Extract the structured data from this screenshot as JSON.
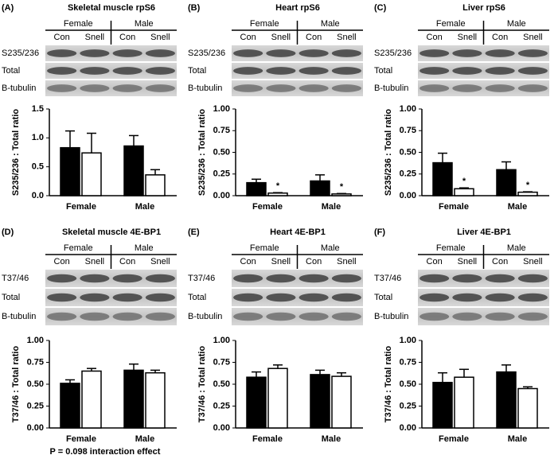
{
  "chart_data": [
    {
      "type": "bar",
      "panel": "(A)",
      "title": "Skeletal muscle rpS6",
      "blot": {
        "groups": [
          "Female",
          "Male"
        ],
        "lanes": [
          "Con",
          "Snell",
          "Con",
          "Snell"
        ],
        "rows": [
          "S235/236",
          "Total",
          "B-tubulin"
        ]
      },
      "y_label": "S235/236 : Total ratio",
      "categories": [
        "Female",
        "Male"
      ],
      "series": [
        {
          "color": "#000000",
          "values": [
            0.83,
            0.86
          ],
          "errors": [
            0.29,
            0.18
          ]
        },
        {
          "color": "#ffffff",
          "values": [
            0.74,
            0.36
          ],
          "errors": [
            0.34,
            0.09
          ]
        }
      ],
      "ylim": [
        0,
        1.5
      ],
      "yticks": [
        {
          "value": 0,
          "label": "0.0"
        },
        0.5,
        {
          "value": 1,
          "label": "1.0"
        },
        1.5
      ]
    },
    {
      "type": "bar",
      "panel": "(B)",
      "title": "Heart rpS6",
      "blot": {
        "groups": [
          "Female",
          "Male"
        ],
        "lanes": [
          "Con",
          "Snell",
          "Con",
          "Snell"
        ],
        "rows": [
          "S235/236",
          "Total",
          "B-tubulin"
        ]
      },
      "y_label": "S235/236 : Total ratio",
      "categories": [
        "Female",
        "Male"
      ],
      "series": [
        {
          "color": "#000000",
          "values": [
            0.15,
            0.17
          ],
          "errors": [
            0.04,
            0.07
          ]
        },
        {
          "color": "#ffffff",
          "values": [
            0.03,
            0.02
          ],
          "errors": [
            0.005,
            0.005
          ]
        }
      ],
      "annotations": [
        "*",
        "*"
      ],
      "ylim": [
        0,
        1
      ],
      "yticks": [
        {
          "value": 0,
          "label": "0.00"
        },
        0.25,
        {
          "value": 0.5,
          "label": "0.50"
        },
        0.75,
        {
          "value": 1,
          "label": "1.00"
        }
      ]
    },
    {
      "type": "bar",
      "panel": "(C)",
      "title": "Liver rpS6",
      "blot": {
        "groups": [
          "Female",
          "Male"
        ],
        "lanes": [
          "Con",
          "Snell",
          "Con",
          "Snell"
        ],
        "rows": [
          "S235/236",
          "Total",
          "B-tubulin"
        ]
      },
      "y_label": "S235/236 : Total ratio",
      "categories": [
        "Female",
        "Male"
      ],
      "series": [
        {
          "color": "#000000",
          "values": [
            0.38,
            0.3
          ],
          "errors": [
            0.11,
            0.09
          ]
        },
        {
          "color": "#ffffff",
          "values": [
            0.08,
            0.04
          ],
          "errors": [
            0.01,
            0.005
          ]
        }
      ],
      "annotations": [
        "*",
        "*"
      ],
      "ylim": [
        0,
        1
      ],
      "yticks": [
        {
          "value": 0,
          "label": "0.00"
        },
        0.25,
        {
          "value": 0.5,
          "label": "0.50"
        },
        0.75,
        {
          "value": 1,
          "label": "1.00"
        }
      ]
    },
    {
      "type": "bar",
      "panel": "(D)",
      "title": "Skeletal muscle 4E-BP1",
      "blot": {
        "groups": [
          "Female",
          "Male"
        ],
        "lanes": [
          "Con",
          "Snell",
          "Con",
          "Snell"
        ],
        "rows": [
          "T37/46",
          "Total",
          "B-tubulin"
        ]
      },
      "y_label": "T37/46 : Total ratio",
      "categories": [
        "Female",
        "Male"
      ],
      "series": [
        {
          "color": "#000000",
          "values": [
            0.51,
            0.66
          ],
          "errors": [
            0.04,
            0.07
          ]
        },
        {
          "color": "#ffffff",
          "values": [
            0.65,
            0.63
          ],
          "errors": [
            0.03,
            0.03
          ]
        }
      ],
      "note": "P = 0.098 interaction effect",
      "ylim": [
        0,
        1
      ],
      "yticks": [
        {
          "value": 0,
          "label": "0.00"
        },
        0.25,
        {
          "value": 0.5,
          "label": "0.50"
        },
        0.75,
        {
          "value": 1,
          "label": "1.00"
        }
      ]
    },
    {
      "type": "bar",
      "panel": "(E)",
      "title": "Heart 4E-BP1",
      "blot": {
        "groups": [
          "Female",
          "Male"
        ],
        "lanes": [
          "Con",
          "Snell",
          "Con",
          "Snell"
        ],
        "rows": [
          "T37/46",
          "Total",
          "B-tubulin"
        ]
      },
      "y_label": "T37/46 : Total ratio",
      "categories": [
        "Female",
        "Male"
      ],
      "series": [
        {
          "color": "#000000",
          "values": [
            0.58,
            0.61
          ],
          "errors": [
            0.06,
            0.05
          ]
        },
        {
          "color": "#ffffff",
          "values": [
            0.68,
            0.59
          ],
          "errors": [
            0.04,
            0.04
          ]
        }
      ],
      "ylim": [
        0,
        1
      ],
      "yticks": [
        {
          "value": 0,
          "label": "0.00"
        },
        0.25,
        {
          "value": 0.5,
          "label": "0.50"
        },
        0.75,
        {
          "value": 1,
          "label": "1.00"
        }
      ]
    },
    {
      "type": "bar",
      "panel": "(F)",
      "title": "Liver 4E-BP1",
      "blot": {
        "groups": [
          "Female",
          "Male"
        ],
        "lanes": [
          "Con",
          "Snell",
          "Con",
          "Snell"
        ],
        "rows": [
          "T37/46",
          "Total",
          "B-tubulin"
        ]
      },
      "y_label": "T37/46 : Total ratio",
      "categories": [
        "Female",
        "Male"
      ],
      "series": [
        {
          "color": "#000000",
          "values": [
            0.52,
            0.64
          ],
          "errors": [
            0.11,
            0.08
          ]
        },
        {
          "color": "#ffffff",
          "values": [
            0.58,
            0.45
          ],
          "errors": [
            0.09,
            0.02
          ]
        }
      ],
      "ylim": [
        0,
        1
      ],
      "yticks": [
        {
          "value": 0,
          "label": "0.00"
        },
        0.25,
        {
          "value": 0.5,
          "label": "0.50"
        },
        0.75,
        {
          "value": 1,
          "label": "1.00"
        }
      ]
    }
  ]
}
